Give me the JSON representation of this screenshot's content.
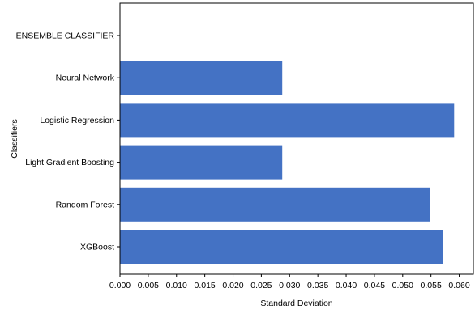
{
  "chart_data": {
    "type": "bar",
    "orientation": "horizontal",
    "categories": [
      "XGBoost",
      "Random Forest",
      "Light Gradient Boosting",
      "Logistic Regression",
      "Neural Network",
      "ENSEMBLE CLASSIFIER"
    ],
    "values": [
      0.0571,
      0.0549,
      0.0287,
      0.0591,
      0.0287,
      0.0
    ],
    "xlabel": "Standard Deviation",
    "ylabel": "Classifiers",
    "xlim": [
      0.0,
      0.0625
    ],
    "xticks": [
      "0.000",
      "0.005",
      "0.010",
      "0.015",
      "0.020",
      "0.025",
      "0.030",
      "0.035",
      "0.040",
      "0.045",
      "0.050",
      "0.055",
      "0.060"
    ],
    "bar_color": "#4472c4",
    "grid": false
  }
}
